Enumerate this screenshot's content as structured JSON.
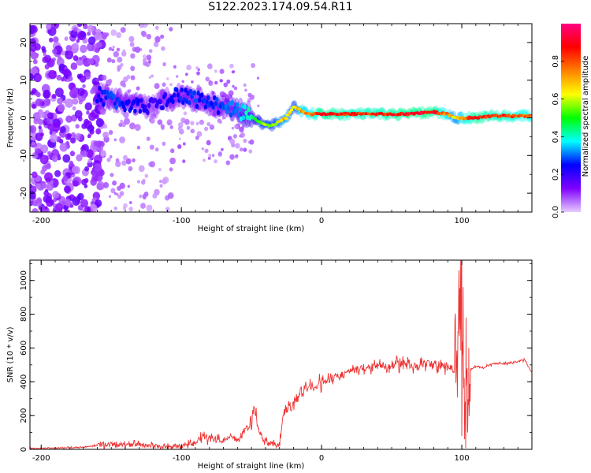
{
  "figure_title": "S122.2023.174.09.54.R11",
  "colorbar": {
    "label": "Normalized spectral amplitude",
    "ticks": [
      0.0,
      0.2,
      0.4,
      0.6,
      0.8
    ],
    "tick_labels": [
      "0.0",
      "0.2",
      "0.4",
      "0.6",
      "0.8"
    ],
    "range": [
      0,
      1
    ],
    "gradient": [
      "#e6ccff",
      "#8000ff",
      "#0000ff",
      "#00ffff",
      "#00ff00",
      "#ffff00",
      "#ff8000",
      "#ff0000",
      "#ff0080"
    ]
  },
  "chart_data": [
    {
      "type": "heatmap",
      "title": "",
      "xlabel": "Height of straight line (km)",
      "ylabel": "Frequency (Hz)",
      "xlim": [
        -208,
        150
      ],
      "ylim": [
        -25,
        25
      ],
      "xticks": [
        -200,
        -100,
        0,
        100
      ],
      "xtick_labels": [
        "-200",
        "-100",
        "0",
        "100"
      ],
      "yticks": [
        -20,
        -10,
        0,
        10,
        20
      ],
      "ytick_labels": [
        "-20",
        "-10",
        "0",
        "10",
        "20"
      ],
      "ridge": {
        "x": [
          -160,
          -150,
          -140,
          -130,
          -120,
          -110,
          -100,
          -90,
          -80,
          -70,
          -60,
          -50,
          -45,
          -40,
          -35,
          -30,
          -25,
          -20,
          -15,
          -10,
          0,
          20,
          40,
          60,
          80,
          90,
          95,
          100,
          110,
          120,
          130,
          140,
          150
        ],
        "y": [
          6,
          5,
          4,
          3,
          3,
          5,
          6,
          5,
          4,
          3,
          2,
          0.5,
          -1,
          -2,
          -2,
          -1,
          0,
          3,
          2,
          1,
          1,
          1,
          1,
          1,
          1.5,
          1,
          0,
          0,
          0,
          0.5,
          0.5,
          0.5,
          0.5
        ],
        "amplitude": [
          0.25,
          0.3,
          0.28,
          0.25,
          0.2,
          0.25,
          0.28,
          0.3,
          0.28,
          0.3,
          0.35,
          0.45,
          0.55,
          0.65,
          0.6,
          0.7,
          0.75,
          0.6,
          0.8,
          0.8,
          0.95,
          0.9,
          0.9,
          0.95,
          0.95,
          0.8,
          0.7,
          0.8,
          0.95,
          0.9,
          0.9,
          0.85,
          0.85
        ]
      }
    },
    {
      "type": "line",
      "title": "",
      "xlabel": "Height of straight line (km)",
      "ylabel": "SNR (10 * v/v)",
      "xlim": [
        -208,
        150
      ],
      "ylim": [
        0,
        1120
      ],
      "xticks": [
        -200,
        -100,
        0,
        100
      ],
      "xtick_labels": [
        "-200",
        "-100",
        "0",
        "100"
      ],
      "yticks": [
        0,
        200,
        400,
        600,
        800,
        1000
      ],
      "ytick_labels": [
        "0",
        "200",
        "400",
        "600",
        "800",
        "1000"
      ],
      "color": "#ee3333",
      "series": [
        {
          "x": [
            -208,
            -190,
            -170,
            -160,
            -150,
            -140,
            -130,
            -120,
            -110,
            -100,
            -90,
            -85,
            -80,
            -75,
            -70,
            -65,
            -60,
            -55,
            -50,
            -48,
            -45,
            -42,
            -40,
            -38,
            -35,
            -32,
            -30,
            -28,
            -25,
            -22,
            -20,
            -15,
            -10,
            -5,
            0,
            10,
            20,
            30,
            40,
            50,
            55,
            60,
            65,
            70,
            75,
            80,
            85,
            90,
            95,
            98,
            100,
            102,
            104,
            106,
            108,
            110,
            115,
            120,
            125,
            130,
            135,
            140,
            145,
            148,
            150
          ],
          "y": [
            5,
            8,
            12,
            25,
            30,
            25,
            30,
            20,
            15,
            20,
            40,
            80,
            60,
            60,
            50,
            90,
            50,
            110,
            140,
            280,
            120,
            60,
            50,
            30,
            40,
            20,
            30,
            180,
            250,
            230,
            280,
            330,
            360,
            380,
            395,
            430,
            460,
            480,
            495,
            500,
            505,
            510,
            500,
            495,
            500,
            505,
            495,
            490,
            470,
            700,
            1000,
            300,
            150,
            470,
            480,
            490,
            485,
            500,
            510,
            505,
            515,
            520,
            530,
            480,
            450
          ]
        }
      ]
    }
  ]
}
